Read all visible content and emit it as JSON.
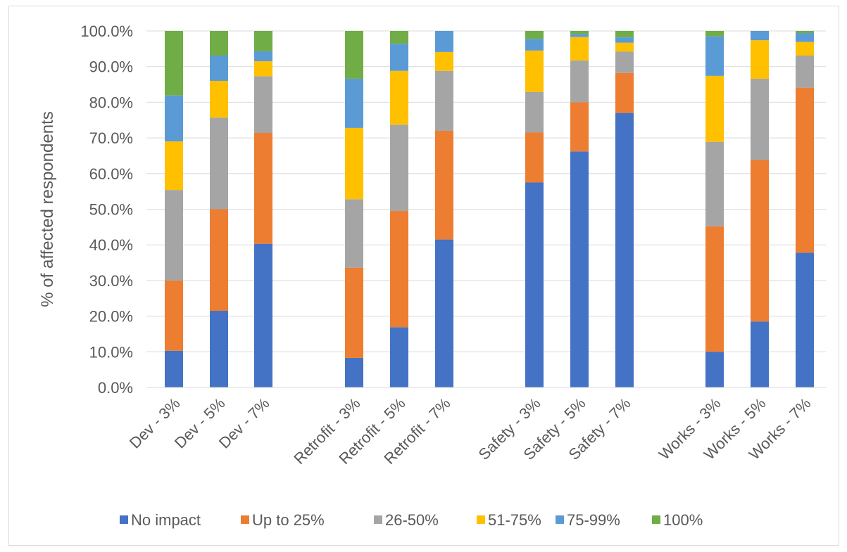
{
  "chart_data": {
    "type": "bar",
    "stacked": true,
    "title": "",
    "xlabel": "",
    "ylabel": "% of affected respondents",
    "ylim": [
      0,
      100
    ],
    "yticks": [
      "0.0%",
      "10.0%",
      "20.0%",
      "30.0%",
      "40.0%",
      "50.0%",
      "60.0%",
      "70.0%",
      "80.0%",
      "90.0%",
      "100.0%"
    ],
    "grid": true,
    "legend_position": "bottom",
    "groups": [
      {
        "categories": [
          "Dev - 3%",
          "Dev - 5%",
          "Dev - 7%"
        ]
      },
      {
        "categories": [
          "Retrofit - 3%",
          "Retrofit - 5%",
          "Retrofit - 7%"
        ]
      },
      {
        "categories": [
          "Safety - 3%",
          "Safety - 5%",
          "Safety - 7%"
        ]
      },
      {
        "categories": [
          "Works - 3%",
          "Works - 5%",
          "Works - 7%"
        ]
      }
    ],
    "categories": [
      "Dev - 3%",
      "Dev - 5%",
      "Dev - 7%",
      "Retrofit - 3%",
      "Retrofit - 5%",
      "Retrofit - 7%",
      "Safety - 3%",
      "Safety - 5%",
      "Safety - 7%",
      "Works - 3%",
      "Works - 5%",
      "Works - 7%"
    ],
    "series": [
      {
        "name": "No impact",
        "color": "#4472c4",
        "values": [
          10.3,
          21.5,
          40.3,
          8.3,
          16.9,
          41.5,
          57.5,
          66.2,
          77.0,
          10.0,
          18.5,
          37.8
        ]
      },
      {
        "name": "Up to 25%",
        "color": "#ed7d31",
        "values": [
          19.7,
          28.5,
          31.1,
          25.3,
          32.6,
          30.5,
          14.0,
          13.8,
          11.2,
          35.2,
          45.3,
          46.3
        ]
      },
      {
        "name": "26-50%",
        "color": "#a5a5a5",
        "values": [
          25.4,
          25.7,
          15.9,
          19.2,
          24.2,
          16.8,
          11.4,
          11.7,
          6.0,
          23.7,
          22.8,
          9.0
        ]
      },
      {
        "name": "51-75%",
        "color": "#ffc000",
        "values": [
          13.6,
          10.3,
          4.2,
          20.0,
          15.1,
          5.3,
          11.6,
          6.6,
          2.5,
          18.5,
          10.8,
          3.8
        ]
      },
      {
        "name": "75-99%",
        "color": "#5b9bd5",
        "values": [
          12.9,
          7.1,
          2.8,
          13.8,
          7.6,
          5.9,
          3.3,
          0.9,
          1.5,
          11.1,
          2.6,
          2.5
        ]
      },
      {
        "name": "100%",
        "color": "#70ad47",
        "values": [
          18.1,
          6.9,
          5.7,
          13.4,
          3.6,
          0.0,
          2.2,
          0.8,
          1.8,
          1.5,
          0.0,
          0.6
        ]
      }
    ]
  }
}
